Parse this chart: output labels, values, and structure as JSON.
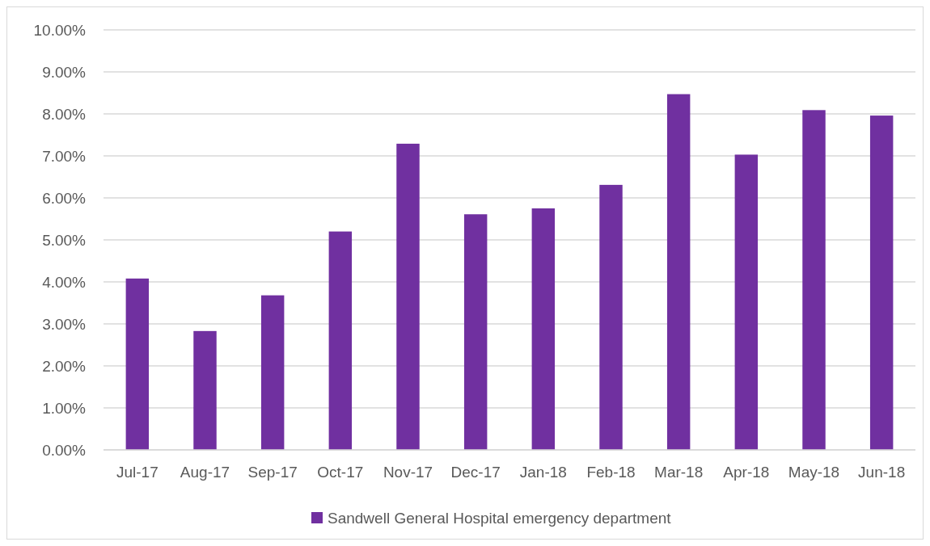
{
  "chart_data": {
    "type": "bar",
    "categories": [
      "Jul-17",
      "Aug-17",
      "Sep-17",
      "Oct-17",
      "Nov-17",
      "Dec-17",
      "Jan-18",
      "Feb-18",
      "Mar-18",
      "Apr-18",
      "May-18",
      "Jun-18"
    ],
    "series": [
      {
        "name": "Sandwell General Hospital emergency department",
        "color": "#7030a0",
        "values": [
          4.08,
          2.83,
          3.68,
          5.2,
          7.29,
          5.61,
          5.75,
          6.31,
          8.47,
          7.03,
          8.09,
          7.96
        ]
      }
    ],
    "ylim": [
      0,
      10
    ],
    "yticks": [
      {
        "value": 0,
        "label": "0.00%"
      },
      {
        "value": 1,
        "label": "1.00%"
      },
      {
        "value": 2,
        "label": "2.00%"
      },
      {
        "value": 3,
        "label": "3.00%"
      },
      {
        "value": 4,
        "label": "4.00%"
      },
      {
        "value": 5,
        "label": "5.00%"
      },
      {
        "value": 6,
        "label": "6.00%"
      },
      {
        "value": 7,
        "label": "7.00%"
      },
      {
        "value": 8,
        "label": "8.00%"
      },
      {
        "value": 9,
        "label": "9.00%"
      },
      {
        "value": 10,
        "label": "10.00%"
      }
    ],
    "grid": "y",
    "legend": "bottom"
  }
}
